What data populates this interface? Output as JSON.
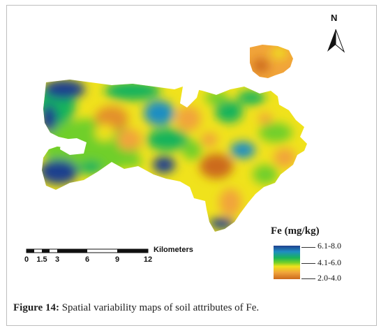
{
  "legend": {
    "title": "Fe (mg/kg)",
    "classes": [
      {
        "label": "6.1-8.0",
        "color": "#1f3f8e"
      },
      {
        "label": "4.1-6.0",
        "color": "#19b35c"
      },
      {
        "label": "2.0-4.0",
        "color": "#cc6a1c"
      }
    ]
  },
  "scale_bar": {
    "unit": "Kilometers",
    "ticks": [
      "0",
      "1.5",
      "3",
      "6",
      "9",
      "12"
    ]
  },
  "north_arrow": {
    "letter": "N",
    "icon": "north-arrow-icon"
  },
  "caption": {
    "label": "Figure 14:",
    "text": " Spatial variability maps of soil attributes of Fe."
  },
  "colors": {
    "high": "#1f3f8e",
    "mid_high": "#1f8ec2",
    "mid": "#19b35c",
    "mid_low": "#f0e21c",
    "low": "#cc6a1c"
  }
}
